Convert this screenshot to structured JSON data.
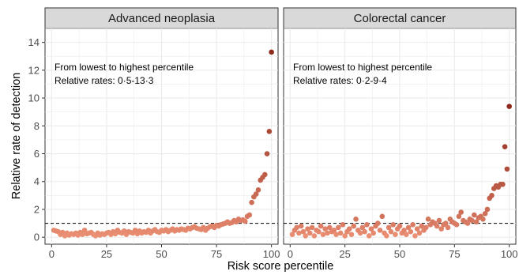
{
  "chart_data": {
    "type": "scatter",
    "xlabel": "Risk score percentile",
    "ylabel": "Relative rate of detection",
    "xlim": [
      -3,
      103
    ],
    "ylim": [
      -0.5,
      15
    ],
    "x_ticks": [
      0,
      25,
      50,
      75,
      100
    ],
    "y_ticks": [
      0,
      2,
      4,
      6,
      8,
      10,
      12,
      14
    ],
    "x_tick_labels": [
      "0",
      "25",
      "50",
      "75",
      "100"
    ],
    "y_tick_labels": [
      "0",
      "2",
      "4",
      "6",
      "8",
      "10",
      "12",
      "14"
    ],
    "reference_line": 1,
    "grid": true,
    "color_low": "#f2977b",
    "color_high": "#8e2a1c",
    "background": "#ffffff",
    "grid_color": "#ebebeb",
    "strip_fill": "#d9d9d9",
    "panels": [
      {
        "title": "Advanced neoplasia",
        "annotation_line1": "From lowest to highest percentile",
        "annotation_line2": "Relative rates: 0·5-13·3",
        "x": [
          1,
          2,
          3,
          4,
          5,
          6,
          7,
          8,
          9,
          10,
          11,
          12,
          13,
          14,
          15,
          16,
          17,
          18,
          19,
          20,
          21,
          22,
          23,
          24,
          25,
          26,
          27,
          28,
          29,
          30,
          31,
          32,
          33,
          34,
          35,
          36,
          37,
          38,
          39,
          40,
          41,
          42,
          43,
          44,
          45,
          46,
          47,
          48,
          49,
          50,
          51,
          52,
          53,
          54,
          55,
          56,
          57,
          58,
          59,
          60,
          61,
          62,
          63,
          64,
          65,
          66,
          67,
          68,
          69,
          70,
          71,
          72,
          73,
          74,
          75,
          76,
          77,
          78,
          79,
          80,
          81,
          82,
          83,
          84,
          85,
          86,
          87,
          88,
          89,
          90,
          91,
          92,
          93,
          94,
          95,
          96,
          97,
          98,
          99,
          100
        ],
        "y": [
          0.5,
          0.45,
          0.4,
          0.2,
          0.35,
          0.1,
          0.3,
          0.15,
          0.25,
          0.2,
          0.3,
          0.15,
          0.35,
          0.2,
          0.5,
          0.25,
          0.3,
          0.35,
          0.2,
          0.1,
          0.3,
          0.15,
          0.25,
          0.2,
          0.3,
          0.35,
          0.2,
          0.4,
          0.25,
          0.5,
          0.35,
          0.3,
          0.45,
          0.2,
          0.4,
          0.35,
          0.3,
          0.5,
          0.25,
          0.45,
          0.3,
          0.4,
          0.35,
          0.5,
          0.3,
          0.45,
          0.55,
          0.4,
          0.35,
          0.5,
          0.45,
          0.55,
          0.4,
          0.5,
          0.6,
          0.45,
          0.55,
          0.5,
          0.6,
          0.55,
          0.5,
          0.65,
          0.6,
          0.7,
          0.75,
          0.65,
          0.6,
          0.55,
          0.7,
          0.5,
          0.65,
          0.75,
          0.8,
          0.7,
          0.85,
          0.8,
          0.9,
          0.95,
          1.0,
          1.1,
          1.0,
          1.05,
          1.2,
          1.1,
          1.3,
          1.2,
          1.25,
          1.15,
          1.5,
          1.6,
          2.5,
          2.9,
          3.1,
          3.4,
          4.1,
          4.3,
          4.5,
          6.0,
          7.6,
          13.3
        ]
      },
      {
        "title": "Colorectal cancer",
        "annotation_line1": "From lowest to highest percentile",
        "annotation_line2": "Relative rates: 0·2-9·4",
        "x": [
          1,
          2,
          3,
          4,
          5,
          6,
          7,
          8,
          9,
          10,
          11,
          12,
          13,
          14,
          15,
          16,
          17,
          18,
          19,
          20,
          21,
          22,
          23,
          24,
          25,
          26,
          27,
          28,
          29,
          30,
          31,
          32,
          33,
          34,
          35,
          36,
          37,
          38,
          39,
          40,
          41,
          42,
          43,
          44,
          45,
          46,
          47,
          48,
          49,
          50,
          51,
          52,
          53,
          54,
          55,
          56,
          57,
          58,
          59,
          60,
          61,
          62,
          63,
          64,
          65,
          66,
          67,
          68,
          69,
          70,
          71,
          72,
          73,
          74,
          75,
          76,
          77,
          78,
          79,
          80,
          81,
          82,
          83,
          84,
          85,
          86,
          87,
          88,
          89,
          90,
          91,
          92,
          93,
          94,
          95,
          96,
          97,
          98,
          99,
          100
        ],
        "y": [
          0.2,
          0.5,
          0.7,
          0.3,
          0.8,
          0.4,
          0.1,
          0.6,
          0.3,
          0.7,
          0.1,
          0.5,
          0.4,
          0.8,
          0.2,
          0.6,
          0.3,
          0.7,
          0.4,
          0.5,
          0.2,
          0.7,
          0.3,
          0.9,
          0.1,
          0.4,
          0.6,
          0.2,
          0.8,
          1.3,
          0.5,
          0.3,
          0.7,
          0.4,
          0.9,
          0.1,
          0.6,
          0.3,
          0.8,
          1.0,
          0.5,
          1.5,
          0.3,
          0.1,
          0.7,
          0.4,
          0.9,
          0.2,
          0.6,
          0.8,
          0.3,
          0.5,
          0.2,
          0.7,
          0.4,
          0.9,
          0.1,
          0.6,
          0.3,
          0.8,
          0.5,
          0.7,
          1.3,
          0.9,
          1.1,
          1.0,
          0.8,
          1.2,
          0.6,
          0.9,
          1.0,
          0.7,
          1.3,
          1.1,
          1.0,
          0.9,
          1.5,
          1.8,
          1.2,
          1.1,
          1.0,
          1.3,
          1.2,
          1.6,
          1.1,
          1.4,
          1.5,
          1.3,
          1.7,
          2.0,
          2.8,
          3.0,
          3.5,
          3.7,
          3.6,
          3.8,
          3.8,
          6.5,
          4.9,
          9.4
        ]
      }
    ]
  }
}
